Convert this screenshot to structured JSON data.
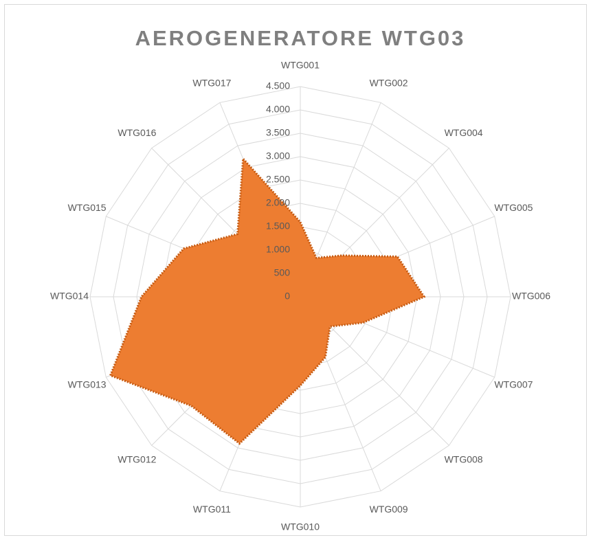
{
  "chart_data": {
    "type": "radar",
    "title": "AEROGENERATORE WTG03",
    "categories": [
      "WTG001",
      "WTG002",
      "WTG004",
      "WTG005",
      "WTG006",
      "WTG007",
      "WTG008",
      "WTG009",
      "WTG010",
      "WTG011",
      "WTG012",
      "WTG013",
      "WTG014",
      "WTG015",
      "WTG016",
      "WTG017"
    ],
    "series": [
      {
        "color": "#ed7d31",
        "values": [
          1600,
          900,
          1250,
          2250,
          2650,
          1450,
          900,
          1400,
          1900,
          3400,
          3300,
          4400,
          3400,
          2700,
          1900,
          3200
        ]
      }
    ],
    "ylim": [
      0,
      4500
    ],
    "yticks": [
      0,
      500,
      {
        "value": 1000,
        "label": "1.000"
      },
      {
        "value": 1500,
        "label": "1.500"
      },
      {
        "value": 2000,
        "label": "2.000"
      },
      {
        "value": 2500,
        "label": "2.500"
      },
      {
        "value": 3000,
        "label": "3.000"
      },
      {
        "value": 3500,
        "label": "3.500"
      },
      {
        "value": 4000,
        "label": "4.000"
      },
      {
        "value": 4500,
        "label": "4.500"
      }
    ],
    "grid": true
  }
}
